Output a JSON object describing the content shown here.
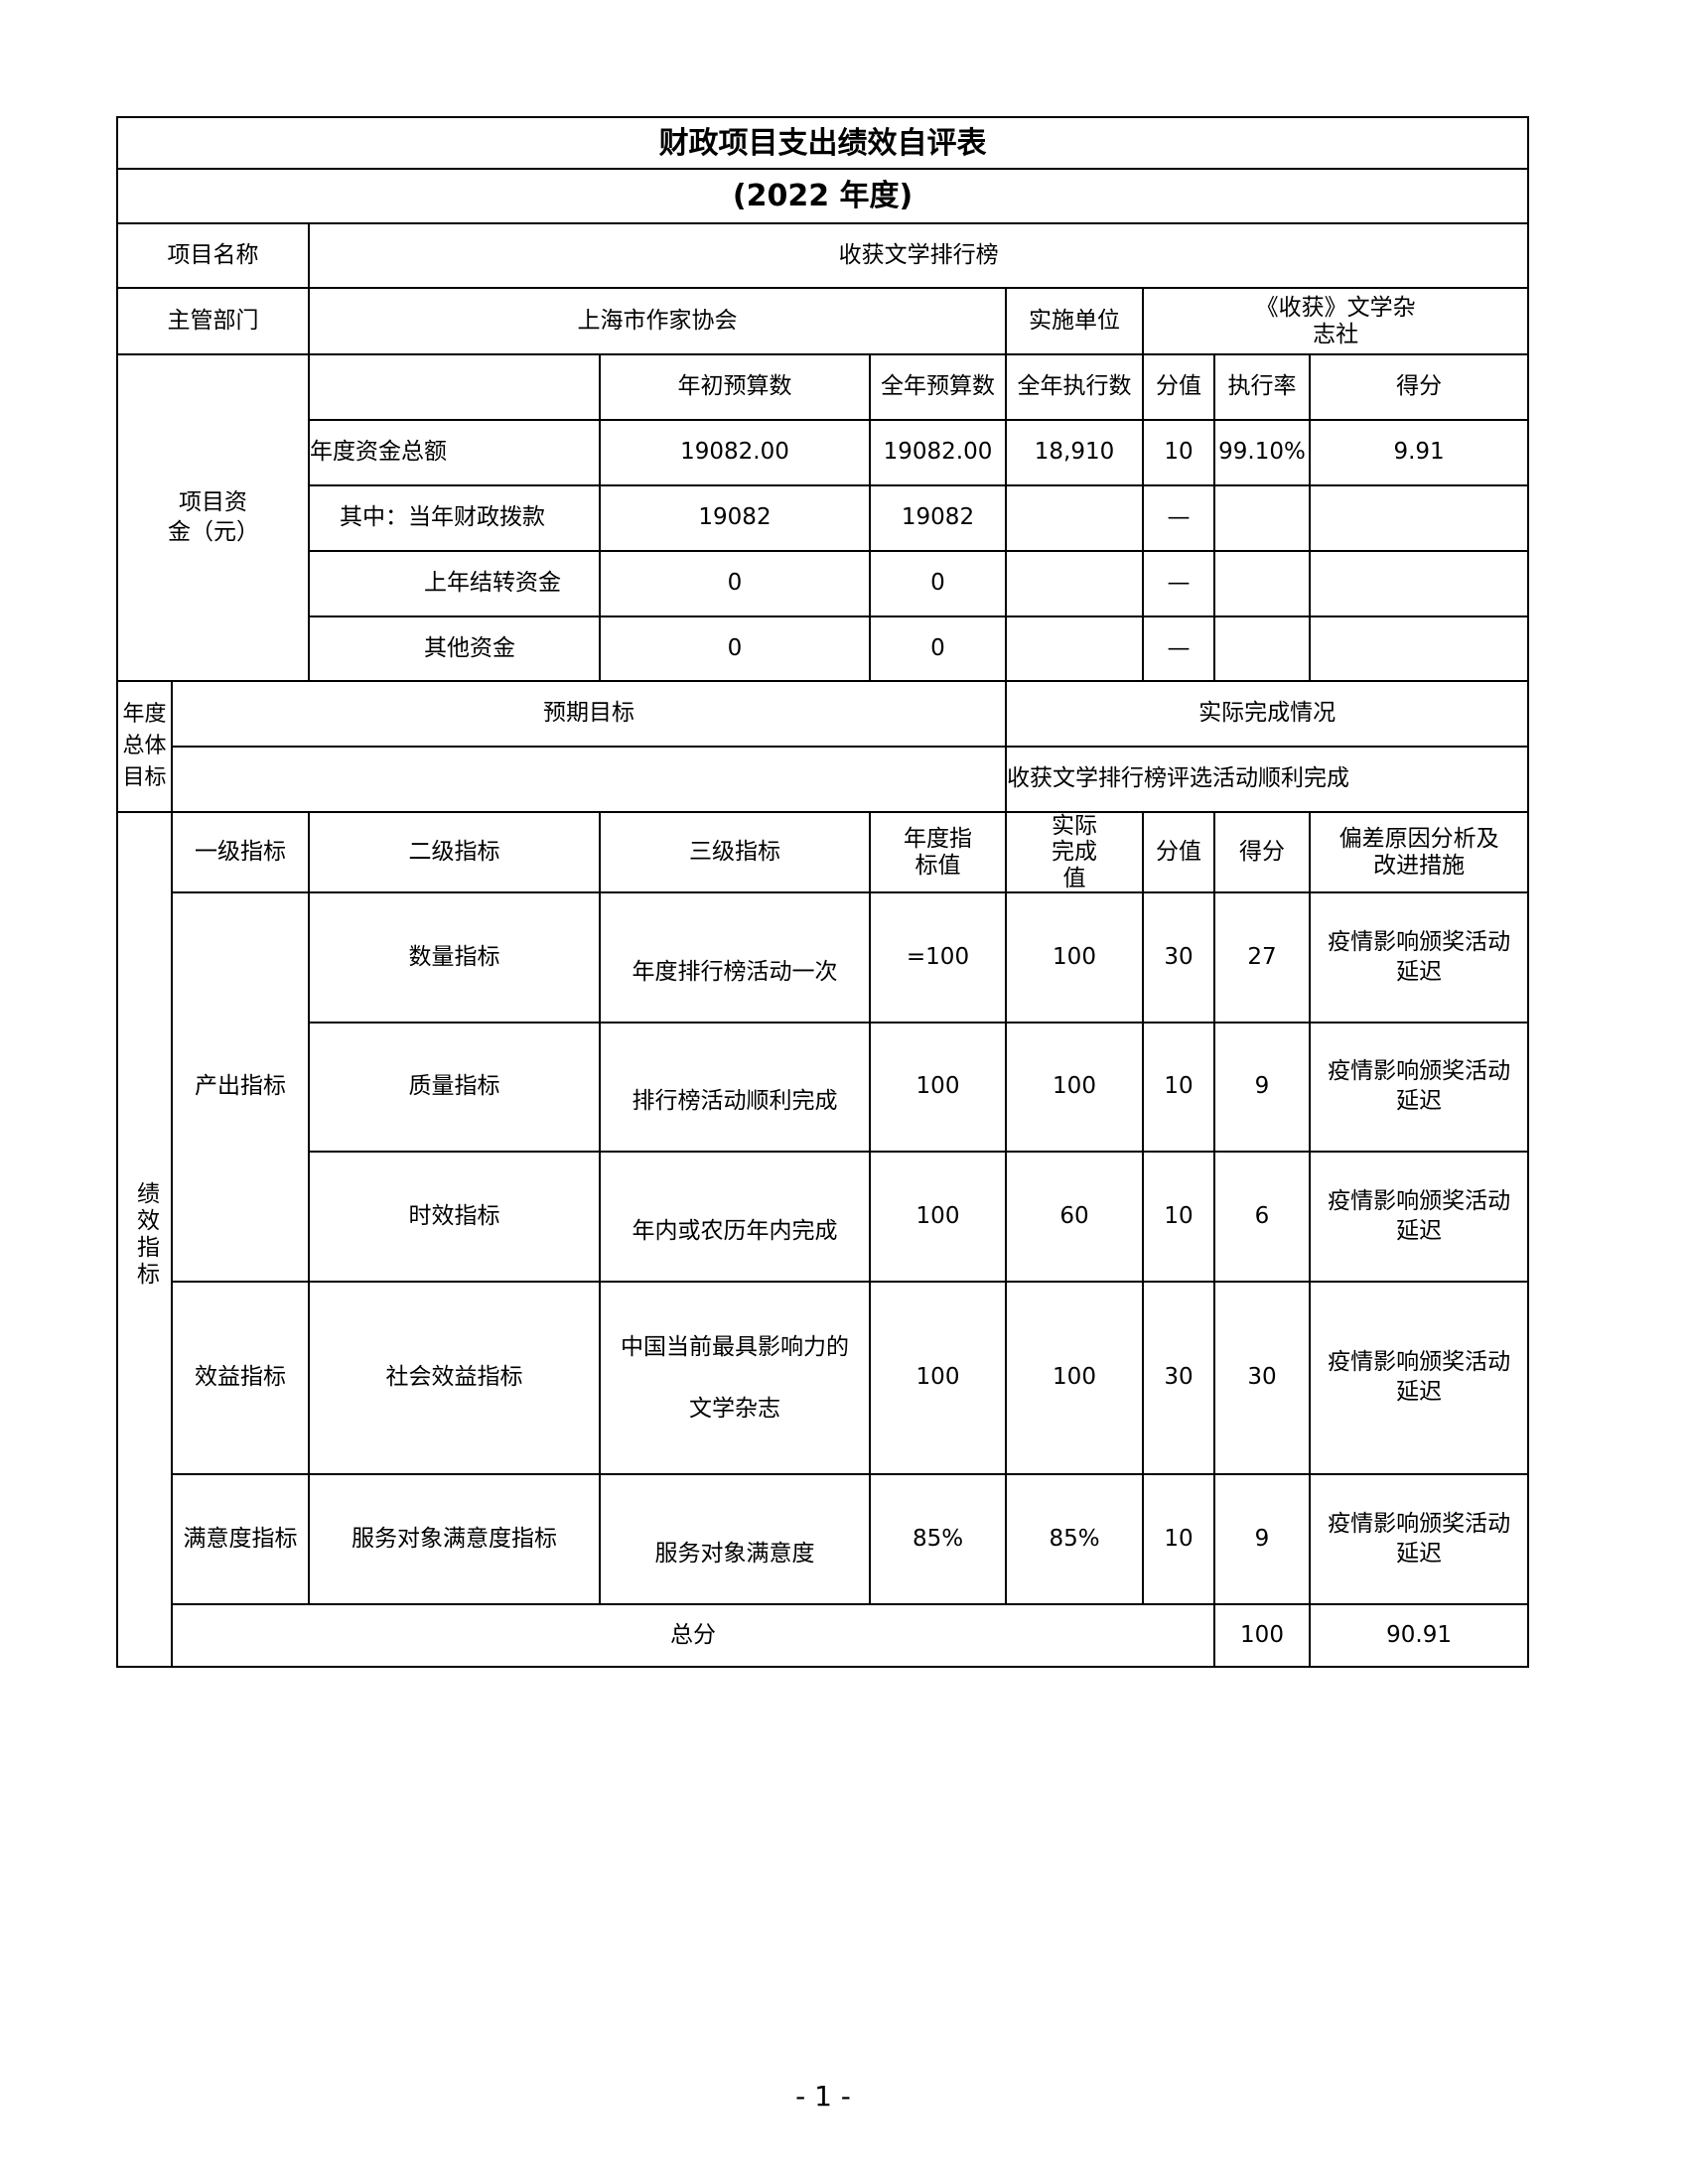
{
  "title": "财政项目支出绩效自评表",
  "year": "(2022 年度)",
  "project": {
    "name_label": "项目名称",
    "name": "收获文学排行榜"
  },
  "dept": {
    "label": "主管部门",
    "value": "上海市作家协会",
    "unit_label": "实施单位",
    "unit_value": "《收获》文学杂志社"
  },
  "funds": {
    "label": "项目资金（元）",
    "headers": [
      "年初预算数",
      "全年预算数",
      "全年执行数",
      "分值",
      "执行率",
      "得分"
    ],
    "rows": [
      {
        "label": "年度资金总额",
        "initial": "19082.00",
        "full": "19082.00",
        "executed": "18,910",
        "weight": "10",
        "rate": "99.10%",
        "score": "9.91"
      },
      {
        "label": "其中：当年财政拨款",
        "initial": "19082",
        "full": "19082",
        "executed": "",
        "weight": "—",
        "rate": "",
        "score": ""
      },
      {
        "label": "上年结转资金",
        "initial": "0",
        "full": "0",
        "executed": "",
        "weight": "—",
        "rate": "",
        "score": ""
      },
      {
        "label": "其他资金",
        "initial": "0",
        "full": "0",
        "executed": "",
        "weight": "—",
        "rate": "",
        "score": ""
      }
    ]
  },
  "goal": {
    "label": "年度总体目标",
    "expected_label": "预期目标",
    "actual_label": "实际完成情况",
    "expected": "",
    "actual": "收获文学排行榜评选活动顺利完成"
  },
  "perf": {
    "label": "绩效指标",
    "headers": [
      "一级指标",
      "二级指标",
      "三级指标",
      "年度指标值",
      "实际完成值",
      "分值",
      "得分",
      "偏差原因分析及改进措施"
    ],
    "rows": [
      {
        "l1": "产出指标",
        "l2": "数量指标",
        "l3": "年度排行榜活动一次",
        "target": "=100",
        "actual": "100",
        "weight": "30",
        "score": "27",
        "note": "疫情影响颁奖活动延迟"
      },
      {
        "l1": "产出指标",
        "l2": "质量指标",
        "l3": "排行榜活动顺利完成",
        "target": "100",
        "actual": "100",
        "weight": "10",
        "score": "9",
        "note": "疫情影响颁奖活动延迟"
      },
      {
        "l1": "产出指标",
        "l2": "时效指标",
        "l3": "年内或农历年内完成",
        "target": "100",
        "actual": "60",
        "weight": "10",
        "score": "6",
        "note": "疫情影响颁奖活动延迟"
      },
      {
        "l1": "效益指标",
        "l2": "社会效益指标",
        "l3": "中国当前最具影响力的文学杂志",
        "target": "100",
        "actual": "100",
        "weight": "30",
        "score": "30",
        "note": "疫情影响颁奖活动延迟"
      },
      {
        "l1": "满意度指标",
        "l2": "服务对象满意度指标",
        "l3": "服务对象满意度",
        "target": "85%",
        "actual": "85%",
        "weight": "10",
        "score": "9",
        "note": "疫情影响颁奖活动延迟"
      }
    ]
  },
  "total": {
    "label": "总分",
    "weight": "100",
    "score": "90.91",
    "note": ""
  },
  "page_number": "- 1 -"
}
